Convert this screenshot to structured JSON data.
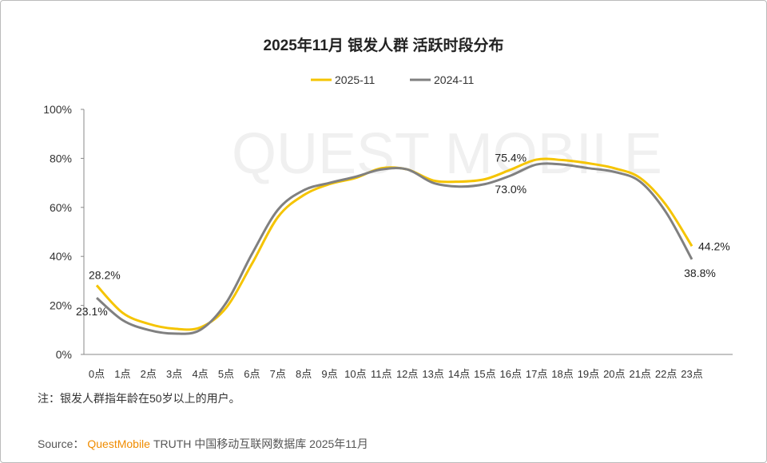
{
  "chart_data": {
    "type": "line",
    "title": "2025年11月 银发人群 活跃时段分布",
    "watermark": "QUEST MOBILE",
    "categories": [
      "0点",
      "1点",
      "2点",
      "3点",
      "4点",
      "5点",
      "6点",
      "7点",
      "8点",
      "9点",
      "10点",
      "11点",
      "12点",
      "13点",
      "14点",
      "15点",
      "16点",
      "17点",
      "18点",
      "19点",
      "20点",
      "21点",
      "22点",
      "23点"
    ],
    "series": [
      {
        "name": "2025-11",
        "color": "#f5c400",
        "values": [
          28.2,
          17,
          12.5,
          10.5,
          11,
          19,
          37,
          56,
          65,
          69.5,
          72,
          76,
          75.5,
          71,
          70.5,
          71.5,
          75.4,
          79.5,
          79.3,
          78,
          76,
          72,
          61,
          44.2
        ],
        "value_labels": [
          "28.2%",
          null,
          null,
          null,
          null,
          null,
          null,
          null,
          null,
          null,
          null,
          null,
          null,
          null,
          null,
          null,
          "75.4%",
          null,
          null,
          null,
          null,
          null,
          null,
          "44.2%"
        ]
      },
      {
        "name": "2024-11",
        "color": "#808080",
        "values": [
          23.1,
          14,
          10,
          8.5,
          10,
          21,
          41,
          59,
          67,
          70,
          72.5,
          75.5,
          75.5,
          70,
          68.5,
          69.5,
          73,
          77.5,
          77.5,
          76,
          74.5,
          70.5,
          58,
          38.8
        ],
        "value_labels": [
          "23.1%",
          null,
          null,
          null,
          null,
          null,
          null,
          null,
          null,
          null,
          null,
          null,
          null,
          null,
          null,
          null,
          "73.0%",
          null,
          null,
          null,
          null,
          null,
          null,
          "38.8%"
        ]
      }
    ],
    "ylim": [
      0,
      100
    ],
    "yticks": [
      {
        "value": 0,
        "label": "0%"
      },
      {
        "value": 20,
        "label": "20%"
      },
      {
        "value": 40,
        "label": "40%"
      },
      {
        "value": 60,
        "label": "60%"
      },
      {
        "value": 80,
        "label": "80%"
      },
      {
        "value": 100,
        "label": "100%"
      }
    ],
    "grid": false,
    "legend": "top",
    "note": "注：银发人群指年龄在50岁以上的用户。",
    "source": {
      "prefix": "Source：",
      "brand": "QuestMobile",
      "text": "TRUTH 中国移动互联网数据库 2025年11月"
    }
  }
}
